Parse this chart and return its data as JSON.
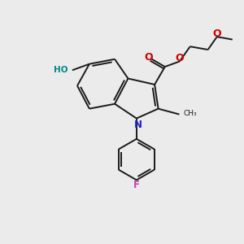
{
  "bg_color": "#ebebeb",
  "bond_color": "#1a1a1a",
  "bond_width": 1.4,
  "figsize": [
    3.0,
    3.0
  ],
  "dpi": 100,
  "xlim": [
    0,
    10
  ],
  "ylim": [
    0,
    10
  ],
  "N_color": "#2020cc",
  "O_color": "#cc0000",
  "F_color": "#cc44aa",
  "HO_color": "#008888"
}
